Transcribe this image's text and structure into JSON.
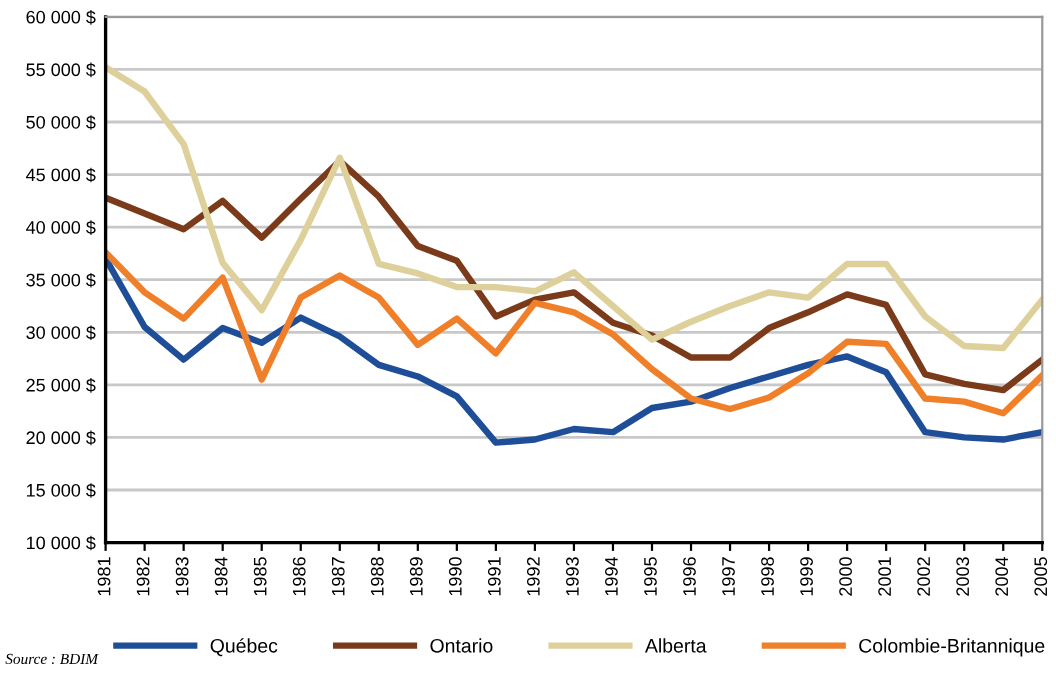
{
  "chart_data": {
    "type": "line",
    "x": [
      1981,
      1982,
      1983,
      1984,
      1985,
      1986,
      1987,
      1988,
      1989,
      1990,
      1991,
      1992,
      1993,
      1994,
      1995,
      1996,
      1997,
      1998,
      1999,
      2000,
      2001,
      2002,
      2003,
      2004,
      2005
    ],
    "xlim": [
      1981,
      2005
    ],
    "xticks": [
      1981,
      1982,
      1983,
      1984,
      1985,
      1986,
      1987,
      1988,
      1989,
      1990,
      1991,
      1992,
      1993,
      1994,
      1995,
      1996,
      1997,
      1998,
      1999,
      2000,
      2001,
      2002,
      2003,
      2004,
      2005
    ],
    "ylim": [
      10000,
      60000
    ],
    "yticks": [
      {
        "value": 10000,
        "label": "10 000 $"
      },
      {
        "value": 15000,
        "label": "15 000 $"
      },
      {
        "value": 20000,
        "label": "20 000 $"
      },
      {
        "value": 25000,
        "label": "25 000 $"
      },
      {
        "value": 30000,
        "label": "30 000 $"
      },
      {
        "value": 35000,
        "label": "35 000 $"
      },
      {
        "value": 40000,
        "label": "40 000 $"
      },
      {
        "value": 45000,
        "label": "45 000 $"
      },
      {
        "value": 50000,
        "label": "50 000 $"
      },
      {
        "value": 55000,
        "label": "55 000 $"
      },
      {
        "value": 60000,
        "label": "60 000 $"
      }
    ],
    "grid": "y",
    "legend": "bottom",
    "marker": "none",
    "line_style": "solid",
    "annotations": [
      "Source : BDIM"
    ],
    "series": [
      {
        "name": "Québec",
        "color": "#1f4e99",
        "values": [
          37000,
          30500,
          27400,
          30400,
          29000,
          31400,
          29600,
          26900,
          25800,
          23900,
          19500,
          19800,
          20800,
          20500,
          22800,
          23400,
          24700,
          25800,
          26900,
          27700,
          26200,
          20500,
          20000,
          19800,
          20500
        ]
      },
      {
        "name": "Ontario",
        "color": "#7b3a1a",
        "values": [
          42800,
          41300,
          39800,
          42500,
          39000,
          42700,
          46300,
          42900,
          38200,
          36800,
          31500,
          33100,
          33800,
          30900,
          29700,
          27600,
          27600,
          30400,
          31900,
          33600,
          32600,
          26000,
          25100,
          24500,
          27400
        ]
      },
      {
        "name": "Alberta",
        "color": "#ddd09a",
        "values": [
          55200,
          52900,
          47900,
          36600,
          32100,
          38800,
          46600,
          36500,
          35600,
          34300,
          34300,
          33900,
          35700,
          32500,
          29300,
          31000,
          32500,
          33800,
          33300,
          36500,
          36500,
          31500,
          28700,
          28500,
          33100
        ]
      },
      {
        "name": "Colombie-Britannique",
        "color": "#f07f2a",
        "values": [
          37600,
          33800,
          31300,
          35200,
          25500,
          33300,
          35400,
          33300,
          28800,
          31300,
          28000,
          32800,
          31900,
          29800,
          26500,
          23700,
          22700,
          23800,
          26100,
          29100,
          28900,
          23700,
          23400,
          22300,
          25900
        ]
      }
    ]
  }
}
